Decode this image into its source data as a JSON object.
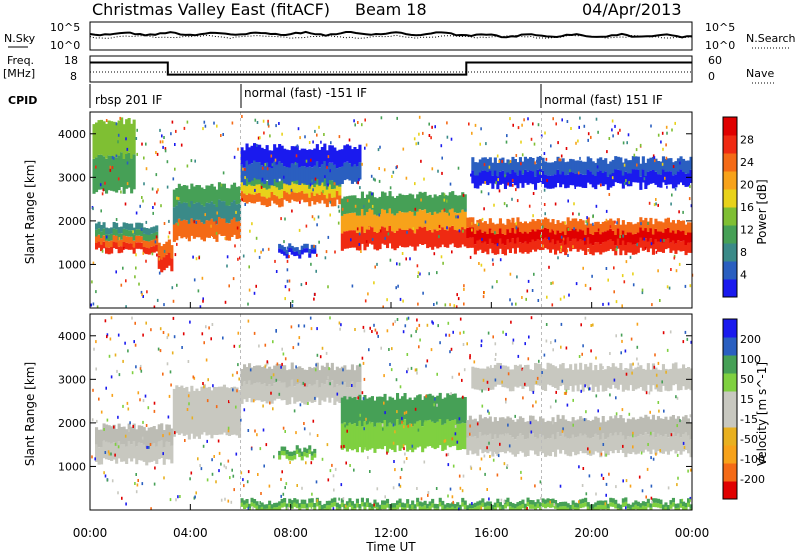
{
  "header": {
    "title": "Christmas Valley East (fitACF)",
    "beam": "Beam 18",
    "date": "04/Apr/2013"
  },
  "nsky_panel": {
    "left_label": "N.Sky",
    "left_ticks": [
      "10^5",
      "10^0"
    ],
    "right_label": "N.Search",
    "right_ticks": [
      "10^5",
      "10^0"
    ]
  },
  "freq_panel": {
    "left_label_1": "Freq.",
    "left_label_2": "[MHz]",
    "left_ticks": [
      "18",
      "8"
    ],
    "right_label": "Nave",
    "right_ticks": [
      "60",
      "0"
    ],
    "freq_steps": [
      {
        "t": 0,
        "mhz": 16.5
      },
      {
        "t": 3.1,
        "mhz": 16.5
      },
      {
        "t": 3.1,
        "mhz": 10.0
      },
      {
        "t": 15.0,
        "mhz": 10.0
      },
      {
        "t": 15.0,
        "mhz": 16.5
      },
      {
        "t": 24,
        "mhz": 16.5
      }
    ]
  },
  "cpid": {
    "label": "CPID",
    "segments": [
      {
        "start": 0,
        "text": "rbsp 201 IF"
      },
      {
        "start": 6.0,
        "text": "normal (fast) -151 IF"
      },
      {
        "start": 18.0,
        "text": "normal (fast) 151 IF"
      }
    ]
  },
  "chart_data": [
    {
      "type": "heatmap",
      "quantity": "Power",
      "ylabel": "Slant Range [km]",
      "ylim": [
        0,
        4500
      ],
      "yticks": [
        1000,
        2000,
        3000,
        4000
      ],
      "xlim": [
        0,
        24
      ],
      "colorbar": {
        "label": "Power [dB]",
        "ticks": [
          "4",
          "8",
          "12",
          "16",
          "20",
          "24",
          "28"
        ],
        "colors": [
          "#1a1aee",
          "#2a5fc0",
          "#3a8a88",
          "#46a056",
          "#7fbf33",
          "#e8d21a",
          "#f7a21a",
          "#f46a16",
          "#ef2a12",
          "#e00000"
        ]
      },
      "bands": [
        {
          "t": [
            0.2,
            2.7
          ],
          "low": 1300,
          "high": 1900,
          "colors": [
            "#ef2a12",
            "#f46a16",
            "#46a056",
            "#3a8a88"
          ]
        },
        {
          "t": [
            2.7,
            3.3
          ],
          "low": 900,
          "high": 1500,
          "colors": [
            "#ef2a12",
            "#f46a16"
          ]
        },
        {
          "t": [
            3.3,
            6.0
          ],
          "low": 1600,
          "high": 2800,
          "colors": [
            "#f46a16",
            "#3a8a88",
            "#46a056"
          ]
        },
        {
          "t": [
            6.0,
            10.0
          ],
          "low": 2400,
          "high": 3000,
          "colors": [
            "#f46a16",
            "#e8d21a",
            "#46a056"
          ]
        },
        {
          "t": [
            6.0,
            10.8
          ],
          "low": 2900,
          "high": 3700,
          "colors": [
            "#2a5fc0",
            "#1a1aee"
          ]
        },
        {
          "t": [
            10.0,
            15.0
          ],
          "low": 1400,
          "high": 2600,
          "colors": [
            "#ef2a12",
            "#f7a21a",
            "#46a056"
          ]
        },
        {
          "t": [
            15.0,
            24.0
          ],
          "low": 1300,
          "high": 2000,
          "colors": [
            "#ef2a12",
            "#e00000",
            "#f46a16"
          ]
        },
        {
          "t": [
            15.2,
            24.0
          ],
          "low": 2800,
          "high": 3400,
          "colors": [
            "#1a1aee",
            "#2a5fc0"
          ]
        },
        {
          "t": [
            7.5,
            9.0
          ],
          "low": 1200,
          "high": 1400,
          "colors": [
            "#1a1aee",
            "#2a5fc0"
          ]
        },
        {
          "t": [
            0.1,
            1.8
          ],
          "low": 2700,
          "high": 4300,
          "colors": [
            "#46a056",
            "#7fbf33"
          ]
        }
      ]
    },
    {
      "type": "heatmap",
      "quantity": "Velocity",
      "ylabel": "Slant Range [km]",
      "ylim": [
        0,
        4500
      ],
      "yticks": [
        1000,
        2000,
        3000,
        4000
      ],
      "xlim": [
        0,
        24
      ],
      "xticks": [
        "00:00",
        "04:00",
        "08:00",
        "12:00",
        "16:00",
        "20:00",
        "00:00"
      ],
      "xlabel": "Time UT",
      "colorbar": {
        "label": "Velocity [m s^-1]",
        "ticks": [
          "-200",
          "-100",
          "-50",
          "-15",
          "15",
          "50",
          "100",
          "200"
        ],
        "colors": [
          "#e00000",
          "#f46a16",
          "#f7a21a",
          "#e8b020",
          "#c8c8c0",
          "#c8c8c0",
          "#7fd040",
          "#46a056",
          "#2a5fc0",
          "#1a1aee"
        ]
      },
      "bands": [
        {
          "t": [
            0.2,
            3.3
          ],
          "low": 1100,
          "high": 1900,
          "colors": [
            "#c8c8c0",
            "#bcbcb4"
          ]
        },
        {
          "t": [
            3.3,
            6.0
          ],
          "low": 1700,
          "high": 2800,
          "colors": [
            "#c8c8c0"
          ]
        },
        {
          "t": [
            6.0,
            10.8
          ],
          "low": 2500,
          "high": 3300,
          "colors": [
            "#c8c8c0",
            "#bcbcb4"
          ]
        },
        {
          "t": [
            10.0,
            15.0
          ],
          "low": 1400,
          "high": 2600,
          "colors": [
            "#7fd040",
            "#46a056"
          ]
        },
        {
          "t": [
            15.0,
            24.0
          ],
          "low": 1300,
          "high": 2100,
          "colors": [
            "#c8c8c0",
            "#bcbcb4"
          ]
        },
        {
          "t": [
            15.2,
            24.0
          ],
          "low": 2800,
          "high": 3300,
          "colors": [
            "#c8c8c0"
          ]
        },
        {
          "t": [
            7.5,
            9.0
          ],
          "low": 1200,
          "high": 1400,
          "colors": [
            "#7fd040",
            "#46a056"
          ]
        },
        {
          "t": [
            6.0,
            24.0
          ],
          "low": 0,
          "high": 200,
          "colors": [
            "#7fd040",
            "#46a056"
          ]
        }
      ]
    }
  ]
}
